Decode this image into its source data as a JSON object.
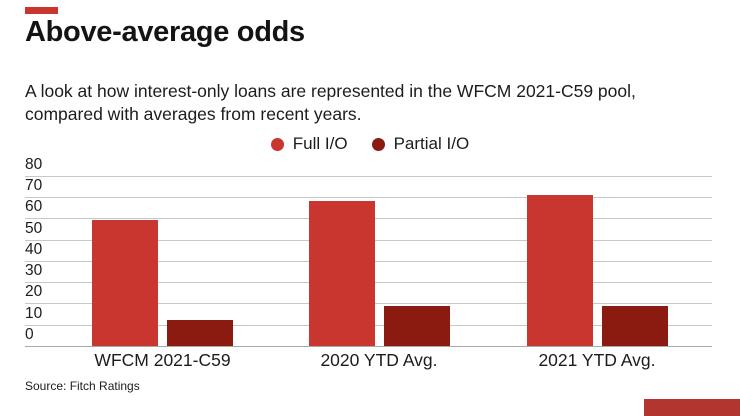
{
  "accent": {
    "topleft_bar_color": "#c8362f",
    "bottomright_block_color": "#b23530"
  },
  "header": {
    "title": "Above-average odds",
    "subtitle_line1": "A look at how interest-only loans are represented in the WFCM 2021-C59 pool,",
    "subtitle_line2": "compared with averages from recent years."
  },
  "source": {
    "text": "Source: Fitch Ratings"
  },
  "colors": {
    "full_io": "#c8362f",
    "partial_io": "#8b1a11",
    "gridline": "#c7c7c7",
    "baseline": "#a9a9a9",
    "text": "#1c1c1a"
  },
  "chart_data": {
    "type": "bar",
    "title": "Above-average odds",
    "categories": [
      "WFCM 2021-C59",
      "2020 YTD Avg.",
      "2021 YTD Avg."
    ],
    "series": [
      {
        "name": "Full I/O",
        "color": "#c8362f",
        "values": [
          59,
          68,
          71
        ]
      },
      {
        "name": "Partial I/O",
        "color": "#8b1a11",
        "values": [
          12,
          19,
          19
        ]
      }
    ],
    "xlabel": "",
    "ylabel": "",
    "ylim": [
      0,
      80
    ],
    "ytick_step": 10,
    "grid": true,
    "gridline_color": "#c7c7c7",
    "legend_position": "top-center"
  }
}
